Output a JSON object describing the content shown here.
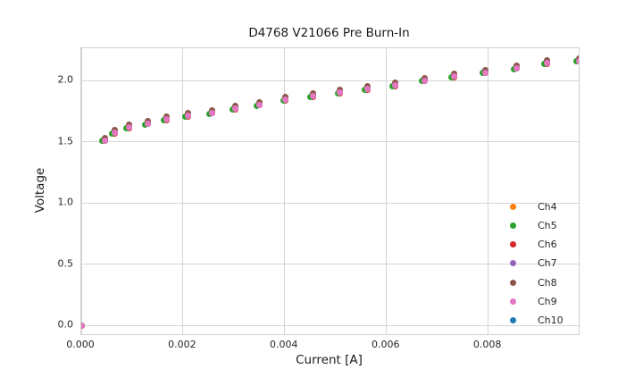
{
  "chart_data": {
    "type": "scatter",
    "title": "D4768 V21066 Pre Burn-In",
    "xlabel": "Current [A]",
    "ylabel": "Voltage",
    "xlim": [
      0,
      0.00978
    ],
    "ylim": [
      -0.073,
      2.263
    ],
    "grid": true,
    "legend_position": "lower right",
    "xticks": {
      "values": [
        0,
        0.002,
        0.004,
        0.006,
        0.008
      ],
      "labels": [
        "0.000",
        "0.002",
        "0.004",
        "0.006",
        "0.008"
      ]
    },
    "yticks": {
      "values": [
        0,
        0.5,
        1.0,
        1.5,
        2.0
      ],
      "labels": [
        "0.0",
        "0.5",
        "1.0",
        "1.5",
        "2.0"
      ]
    },
    "x": [
      0,
      0.00046,
      0.00066,
      0.00094,
      0.0013,
      0.00168,
      0.0021,
      0.00257,
      0.00303,
      0.0035,
      0.00402,
      0.00455,
      0.00509,
      0.00563,
      0.00617,
      0.00675,
      0.00733,
      0.00795,
      0.00856,
      0.00916,
      0.00978
    ],
    "voltages": [
      0,
      1.51,
      1.57,
      1.615,
      1.647,
      1.682,
      1.71,
      1.735,
      1.77,
      1.8,
      1.84,
      1.87,
      1.9,
      1.93,
      1.96,
      2.0,
      2.03,
      2.065,
      2.1,
      2.14,
      2.16
    ],
    "series": [
      {
        "name": "Ch4",
        "color": "#ff7f0e",
        "voltage_offset": 0,
        "current_offset": 0
      },
      {
        "name": "Ch5",
        "color": "#2ca02c",
        "voltage_offset": -0.006,
        "current_offset": -5e-05
      },
      {
        "name": "Ch6",
        "color": "#d62728",
        "voltage_offset": -0.004,
        "current_offset": 0
      },
      {
        "name": "Ch7",
        "color": "#9467bd",
        "voltage_offset": 0,
        "current_offset": 0
      },
      {
        "name": "Ch8",
        "color": "#8c564b",
        "voltage_offset": 0.022,
        "current_offset": 0
      },
      {
        "name": "Ch9",
        "color": "#e377c2",
        "voltage_offset": 0,
        "current_offset": 0
      },
      {
        "name": "Ch10",
        "color": "#1f77b4",
        "voltage_offset": 0,
        "current_offset": 0
      }
    ],
    "draw_order": [
      "Ch10",
      "Ch4",
      "Ch6",
      "Ch7",
      "Ch5",
      "Ch8",
      "Ch9"
    ]
  }
}
